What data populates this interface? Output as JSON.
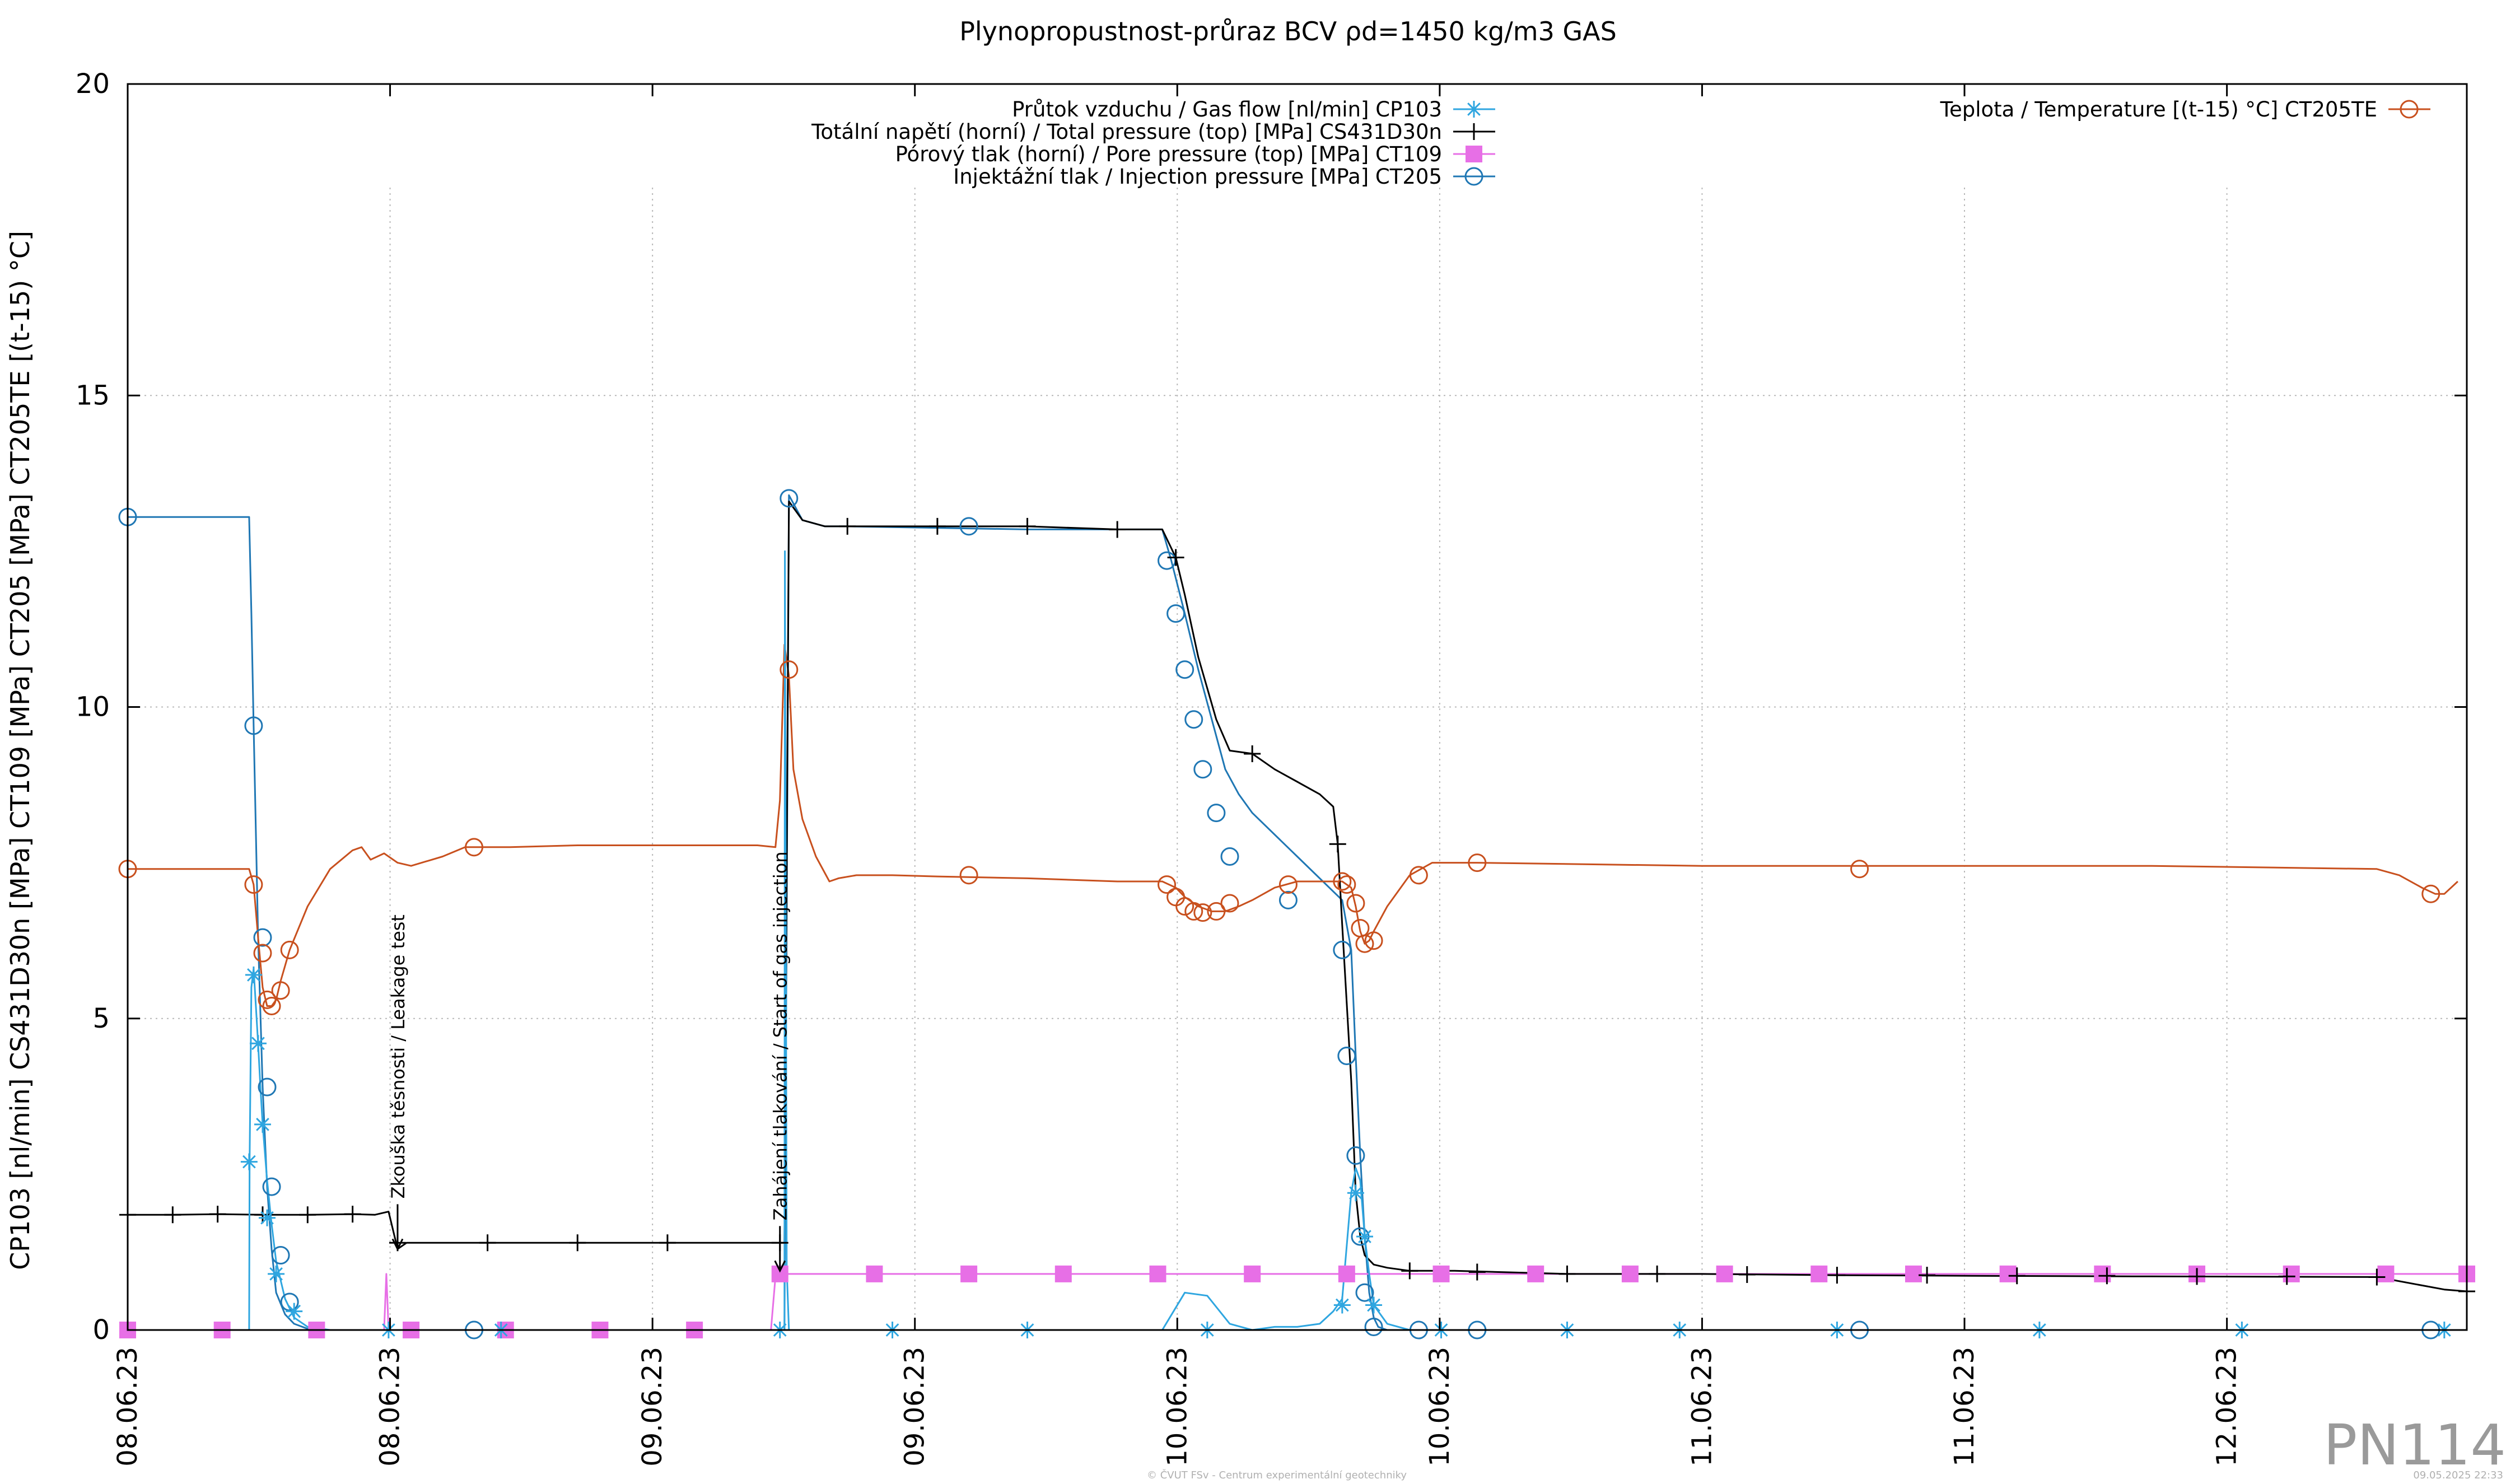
{
  "chart_data": {
    "type": "line",
    "title": "Plynopropustnost-průraz BCV ρd=1450 kg/m3 GAS",
    "ylabel": "CP103 [nl/min] CS431D30n [MPa] CT109 [MPa] CT205 [MPa] CT205TE [(t-15) °C]",
    "xlabel": "",
    "xlim": [
      0,
      5.2
    ],
    "ylim": [
      0,
      20
    ],
    "yticks": [
      0,
      5,
      10,
      15,
      20
    ],
    "ytick_labels": [
      "0",
      "5",
      "10",
      "15",
      "20"
    ],
    "xticks": [
      0,
      0.5833,
      1.1667,
      1.75,
      2.3333,
      2.9167,
      3.5,
      4.0833,
      4.6667
    ],
    "xtick_labels": [
      "08.06.23",
      "08.06.23",
      "09.06.23",
      "09.06.23",
      "10.06.23",
      "10.06.23",
      "11.06.23",
      "11.06.23",
      "12.06.23"
    ],
    "grid": true,
    "x_unit_note": "x in days after 08.06.23 00:00",
    "series": [
      {
        "name": "Průtok vzduchu / Gas flow [nl/min] CP103",
        "color": "#2fa6e0",
        "marker": "star",
        "x": [
          0,
          0.27,
          0.271,
          0.275,
          0.28,
          0.285,
          0.29,
          0.295,
          0.3,
          0.31,
          0.32,
          0.33,
          0.35,
          0.37,
          0.4,
          0.45,
          1.45,
          1.46,
          1.461,
          1.465,
          1.47,
          1.5,
          2.3,
          2.35,
          2.4,
          2.45,
          2.5,
          2.55,
          2.6,
          2.65,
          2.68,
          2.7,
          2.72,
          2.73,
          2.74,
          2.75,
          2.76,
          2.77,
          2.8,
          2.85,
          2.9,
          5.2
        ],
        "y": [
          0,
          0,
          2.7,
          5.5,
          5.8,
          5.2,
          4.6,
          3.9,
          3.3,
          2.4,
          1.7,
          1.1,
          0.5,
          0.2,
          0.05,
          0,
          0,
          0,
          12.5,
          1.0,
          0,
          0,
          0,
          0.6,
          0.55,
          0.1,
          0,
          0.05,
          0.05,
          0.1,
          0.3,
          0.5,
          2.2,
          2.6,
          2.4,
          1.5,
          0.9,
          0.4,
          0.1,
          0,
          0,
          0
        ],
        "marker_x": [
          0.27,
          0.28,
          0.29,
          0.3,
          0.31,
          0.33,
          0.37,
          0.58,
          0.83,
          1.45,
          1.7,
          2.0,
          2.4,
          2.7,
          2.73,
          2.75,
          2.77,
          2.92,
          3.2,
          3.45,
          3.8,
          4.25,
          4.7,
          5.15
        ],
        "marker_y": [
          2.7,
          5.7,
          4.6,
          3.3,
          1.8,
          0.9,
          0.3,
          0,
          0,
          0,
          0,
          0,
          0,
          0.4,
          2.2,
          1.5,
          0.4,
          0,
          0,
          0,
          0,
          0,
          0,
          0
        ]
      },
      {
        "name": "Totální napětí (horní) / Total pressure (top) [MPa] CS431D30n",
        "color": "#000000",
        "marker": "plus",
        "x": [
          0,
          0.1,
          0.2,
          0.3,
          0.4,
          0.5,
          0.55,
          0.58,
          0.6,
          0.62,
          0.7,
          1.0,
          1.3,
          1.45,
          1.46,
          1.47,
          1.48,
          1.5,
          1.55,
          1.6,
          1.7,
          2.0,
          2.2,
          2.3,
          2.33,
          2.35,
          2.38,
          2.42,
          2.45,
          2.5,
          2.55,
          2.6,
          2.65,
          2.68,
          2.69,
          2.7,
          2.72,
          2.73,
          2.74,
          2.75,
          2.77,
          2.8,
          2.85,
          2.95,
          3.2,
          3.5,
          3.8,
          4.1,
          4.5,
          5.0,
          5.15,
          5.2
        ],
        "y": [
          1.85,
          1.85,
          1.86,
          1.85,
          1.85,
          1.86,
          1.85,
          1.9,
          1.3,
          1.4,
          1.4,
          1.4,
          1.4,
          1.4,
          1.4,
          13.3,
          13.2,
          13.0,
          12.9,
          12.9,
          12.9,
          12.9,
          12.85,
          12.85,
          12.4,
          11.8,
          10.8,
          9.8,
          9.3,
          9.25,
          9.0,
          8.8,
          8.6,
          8.4,
          7.8,
          6.5,
          4.0,
          2.2,
          1.5,
          1.2,
          1.05,
          1.0,
          0.95,
          0.95,
          0.9,
          0.9,
          0.88,
          0.87,
          0.86,
          0.85,
          0.65,
          0.62
        ],
        "marker_x": [
          0,
          0.1,
          0.2,
          0.3,
          0.4,
          0.5,
          0.6,
          0.8,
          1.0,
          1.2,
          1.45,
          1.6,
          1.8,
          2.0,
          2.2,
          2.33,
          2.5,
          2.69,
          2.85,
          3.0,
          3.2,
          3.4,
          3.6,
          3.8,
          4.0,
          4.2,
          4.4,
          4.6,
          4.8,
          5.0,
          5.2
        ],
        "marker_y": [
          1.85,
          1.85,
          1.86,
          1.85,
          1.85,
          1.86,
          1.4,
          1.4,
          1.4,
          1.4,
          1.4,
          12.9,
          12.9,
          12.9,
          12.85,
          12.4,
          9.25,
          7.8,
          0.95,
          0.93,
          0.9,
          0.9,
          0.89,
          0.88,
          0.88,
          0.87,
          0.87,
          0.86,
          0.86,
          0.85,
          0.62
        ]
      },
      {
        "name": "Pórový tlak (horní) / Pore pressure (top) [MPa] CT109",
        "color": "#e76fe6",
        "marker": "square",
        "x": [
          0,
          0.5,
          0.57,
          0.575,
          0.58,
          1.43,
          1.44,
          1.45,
          1.6,
          2.0,
          3.0,
          4.0,
          5.2
        ],
        "y": [
          0,
          0,
          0,
          0.9,
          0,
          0,
          0.85,
          0.9,
          0.9,
          0.9,
          0.9,
          0.9,
          0.9
        ],
        "marker_x": [
          0,
          0.21,
          0.42,
          0.63,
          0.84,
          1.05,
          1.26,
          1.45,
          1.66,
          1.87,
          2.08,
          2.29,
          2.5,
          2.71,
          2.92,
          3.13,
          3.34,
          3.55,
          3.76,
          3.97,
          4.18,
          4.39,
          4.6,
          4.81,
          5.02,
          5.2
        ],
        "marker_y": [
          0,
          0,
          0,
          0,
          0,
          0,
          0,
          0.9,
          0.9,
          0.9,
          0.9,
          0.9,
          0.9,
          0.9,
          0.9,
          0.9,
          0.9,
          0.9,
          0.9,
          0.9,
          0.9,
          0.9,
          0.9,
          0.9,
          0.9,
          0.9
        ]
      },
      {
        "name": "Injektážní tlak / Injection pressure [MPa] CT205",
        "color": "#1f77b4",
        "marker": "circle",
        "x": [
          0,
          0.27,
          0.275,
          0.28,
          0.29,
          0.3,
          0.31,
          0.32,
          0.33,
          0.35,
          0.37,
          0.4,
          0.45,
          1.45,
          1.46,
          1.47,
          1.5,
          1.55,
          1.6,
          2.0,
          2.3,
          2.32,
          2.35,
          2.38,
          2.41,
          2.44,
          2.47,
          2.5,
          2.6,
          2.7,
          2.72,
          2.73,
          2.74,
          2.75,
          2.76,
          2.77,
          2.78,
          2.8,
          2.85,
          2.9,
          5.2
        ],
        "y": [
          13.05,
          13.05,
          11.5,
          9.7,
          6.3,
          3.9,
          2.3,
          1.3,
          0.6,
          0.25,
          0.1,
          0.02,
          0,
          0,
          0,
          13.4,
          13.0,
          12.9,
          12.9,
          12.85,
          12.85,
          12.35,
          11.5,
          10.6,
          9.8,
          9.0,
          8.6,
          8.3,
          7.6,
          6.9,
          6.1,
          4.4,
          2.8,
          1.5,
          0.6,
          0.2,
          0.05,
          0,
          0,
          0,
          0
        ],
        "marker_x": [
          0,
          0.28,
          0.3,
          0.31,
          0.32,
          0.34,
          0.36,
          0.77,
          1.47,
          1.87,
          2.31,
          2.33,
          2.35,
          2.37,
          2.39,
          2.42,
          2.45,
          2.58,
          2.7,
          2.71,
          2.73,
          2.74,
          2.75,
          2.77,
          2.87,
          3.0,
          3.85,
          5.12
        ],
        "marker_y": [
          13.05,
          9.7,
          6.3,
          3.9,
          2.3,
          1.2,
          0.45,
          0,
          13.35,
          12.9,
          12.35,
          11.5,
          10.6,
          9.8,
          9.0,
          8.3,
          7.6,
          6.9,
          6.1,
          4.4,
          2.8,
          1.5,
          0.6,
          0.05,
          0,
          0,
          0,
          0
        ],
        "marker_skip": [
          17,
          18
        ]
      },
      {
        "name": "Teplota / Temperature [(t-15) °C] CT205TE",
        "color": "#c8501e",
        "marker": "circle",
        "x": [
          0,
          0.1,
          0.2,
          0.27,
          0.28,
          0.29,
          0.3,
          0.31,
          0.32,
          0.33,
          0.34,
          0.36,
          0.4,
          0.45,
          0.5,
          0.52,
          0.54,
          0.57,
          0.6,
          0.63,
          0.7,
          0.75,
          0.85,
          1.0,
          1.2,
          1.4,
          1.44,
          1.45,
          1.46,
          1.47,
          1.48,
          1.5,
          1.53,
          1.56,
          1.58,
          1.62,
          1.7,
          1.8,
          2.0,
          2.2,
          2.3,
          2.33,
          2.35,
          2.38,
          2.41,
          2.44,
          2.47,
          2.5,
          2.55,
          2.6,
          2.65,
          2.7,
          2.72,
          2.73,
          2.74,
          2.75,
          2.76,
          2.77,
          2.8,
          2.85,
          2.9,
          3.0,
          3.5,
          4.0,
          4.5,
          5.0,
          5.05,
          5.1,
          5.13,
          5.15,
          5.18
        ],
        "y": [
          7.4,
          7.4,
          7.4,
          7.4,
          7.15,
          6.3,
          5.5,
          5.2,
          5.2,
          5.3,
          5.6,
          6.1,
          6.8,
          7.4,
          7.7,
          7.75,
          7.55,
          7.65,
          7.5,
          7.45,
          7.6,
          7.75,
          7.75,
          7.78,
          7.78,
          7.78,
          7.75,
          8.5,
          11.0,
          10.5,
          9.0,
          8.2,
          7.6,
          7.2,
          7.25,
          7.3,
          7.3,
          7.28,
          7.25,
          7.2,
          7.2,
          7.1,
          6.95,
          6.8,
          6.72,
          6.72,
          6.8,
          6.9,
          7.1,
          7.2,
          7.2,
          7.2,
          7.1,
          6.8,
          6.4,
          6.2,
          6.25,
          6.4,
          6.8,
          7.3,
          7.5,
          7.5,
          7.45,
          7.45,
          7.45,
          7.4,
          7.3,
          7.1,
          7.0,
          7.0,
          7.2
        ],
        "marker_x": [
          0,
          0.28,
          0.3,
          0.31,
          0.32,
          0.34,
          0.36,
          0.77,
          1.47,
          1.87,
          2.31,
          2.33,
          2.35,
          2.37,
          2.39,
          2.42,
          2.45,
          2.58,
          2.7,
          2.71,
          2.73,
          2.74,
          2.75,
          2.77,
          2.87,
          3.0,
          3.85,
          5.12
        ],
        "marker_y": [
          7.4,
          7.15,
          6.05,
          5.3,
          5.2,
          5.45,
          6.1,
          7.75,
          10.6,
          7.3,
          7.15,
          6.95,
          6.8,
          6.72,
          6.7,
          6.72,
          6.85,
          7.15,
          7.2,
          7.15,
          6.85,
          6.45,
          6.2,
          6.25,
          7.3,
          7.5,
          7.4,
          7.0
        ],
        "marker_skip": []
      }
    ],
    "annotations": [
      {
        "text": "Zkouška těsnosti / Leakage test",
        "x": 0.6,
        "y_arrow": 1.3
      },
      {
        "text": "Zahájení tlakování / Start of gas injection",
        "x": 1.45,
        "y_arrow": 0.95
      }
    ],
    "legend_left_placement": "top-center",
    "legend_right_placement": "top-right"
  },
  "watermark": {
    "plot_id": "PN114",
    "footer_center": "© ČVUT FSv - Centrum experimentální geotechniky",
    "footer_right": "09.05.2025 22:33"
  }
}
